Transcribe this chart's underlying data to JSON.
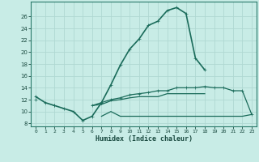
{
  "title": "",
  "xlabel": "Humidex (Indice chaleur)",
  "ylabel": "",
  "background_color": "#c8ece6",
  "grid_color": "#b0d8d2",
  "line_color": "#1a6b5a",
  "x_values": [
    0,
    1,
    2,
    3,
    4,
    5,
    6,
    7,
    8,
    9,
    10,
    11,
    12,
    13,
    14,
    15,
    16,
    17,
    18,
    19,
    20,
    21,
    22,
    23
  ],
  "line1_y": [
    12.5,
    11.5,
    11.0,
    10.5,
    10.0,
    8.5,
    9.2,
    11.5,
    14.5,
    17.8,
    20.5,
    22.2,
    24.5,
    25.2,
    27.0,
    27.5,
    26.5,
    19.0,
    17.0,
    null,
    null,
    null,
    null,
    null
  ],
  "line2_y": [
    12.0,
    null,
    11.0,
    null,
    null,
    null,
    11.0,
    11.5,
    12.0,
    12.3,
    12.8,
    13.0,
    13.2,
    13.5,
    13.5,
    14.0,
    14.0,
    14.0,
    14.2,
    14.0,
    14.0,
    13.5,
    13.5,
    9.5
  ],
  "line3_y": [
    12.0,
    null,
    11.0,
    null,
    null,
    null,
    11.0,
    11.2,
    11.8,
    12.0,
    12.3,
    12.5,
    12.5,
    12.5,
    13.0,
    13.0,
    13.0,
    13.0,
    13.0,
    null,
    null,
    null,
    null,
    null
  ],
  "line4_y": [
    null,
    null,
    11.0,
    null,
    null,
    8.8,
    null,
    9.2,
    10.0,
    9.2,
    9.2,
    9.2,
    9.2,
    9.2,
    9.2,
    9.2,
    9.2,
    9.2,
    9.2,
    9.2,
    9.2,
    9.2,
    9.2,
    9.5
  ],
  "ylim": [
    7.5,
    28.5
  ],
  "xlim": [
    -0.5,
    23.5
  ],
  "yticks": [
    8,
    10,
    12,
    14,
    16,
    18,
    20,
    22,
    24,
    26
  ],
  "xticks": [
    0,
    1,
    2,
    3,
    4,
    5,
    6,
    7,
    8,
    9,
    10,
    11,
    12,
    13,
    14,
    15,
    16,
    17,
    18,
    19,
    20,
    21,
    22,
    23
  ]
}
